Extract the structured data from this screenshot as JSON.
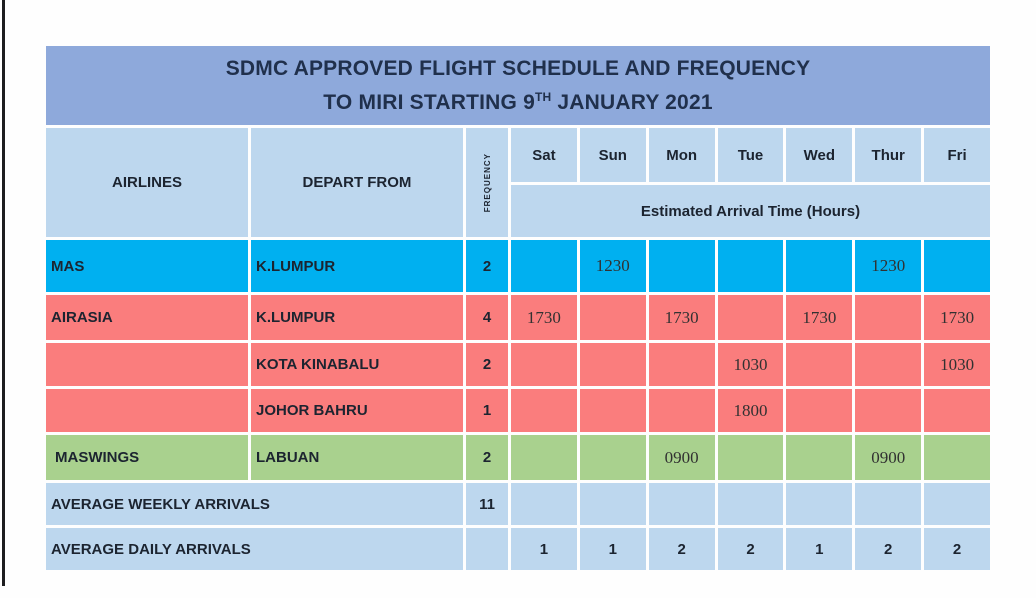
{
  "title": {
    "line1": "SDMC APPROVED FLIGHT SCHEDULE AND FREQUENCY",
    "line2_prefix": "TO MIRI STARTING 9",
    "line2_sup": "TH",
    "line2_suffix": " JANUARY 2021"
  },
  "table": {
    "headers": {
      "airlines": "AIRLINES",
      "depart_from": "DEPART FROM",
      "frequency": "FREQUENCY",
      "days": [
        "Sat",
        "Sun",
        "Mon",
        "Tue",
        "Wed",
        "Thur",
        "Fri"
      ],
      "arrival_banner": "Estimated Arrival Time (Hours)"
    },
    "rows": [
      {
        "airline": "MAS",
        "depart": "K.LUMPUR",
        "frequency": "2",
        "times": [
          "",
          "1230",
          "",
          "",
          "",
          "1230",
          ""
        ]
      },
      {
        "airline": "AIRASIA",
        "depart": "K.LUMPUR",
        "frequency": "4",
        "times": [
          "1730",
          "",
          "1730",
          "",
          "1730",
          "",
          "1730"
        ]
      },
      {
        "airline": "",
        "depart": "KOTA KINABALU",
        "frequency": "2",
        "times": [
          "",
          "",
          "",
          "1030",
          "",
          "",
          "1030"
        ]
      },
      {
        "airline": "",
        "depart": "JOHOR BAHRU",
        "frequency": "1",
        "times": [
          "",
          "",
          "",
          "1800",
          "",
          "",
          ""
        ]
      },
      {
        "airline": "MASWINGS",
        "depart": "LABUAN",
        "frequency": "2",
        "times": [
          "",
          "",
          "0900",
          "",
          "",
          "0900",
          ""
        ]
      }
    ],
    "summary": [
      {
        "label": "AVERAGE WEEKLY ARRIVALS",
        "frequency": "11",
        "values": [
          "",
          "",
          "",
          "",
          "",
          "",
          ""
        ]
      },
      {
        "label": "AVERAGE DAILY ARRIVALS",
        "frequency": "",
        "values": [
          "1",
          "1",
          "2",
          "2",
          "1",
          "2",
          "2"
        ]
      }
    ]
  },
  "colors": {
    "title": "#8ea9db",
    "header": "#bdd7ee",
    "mas": "#00b0f0",
    "airasia": "#fa7d7d",
    "maswings": "#a9d18e",
    "summary": "#bdd7ee"
  }
}
